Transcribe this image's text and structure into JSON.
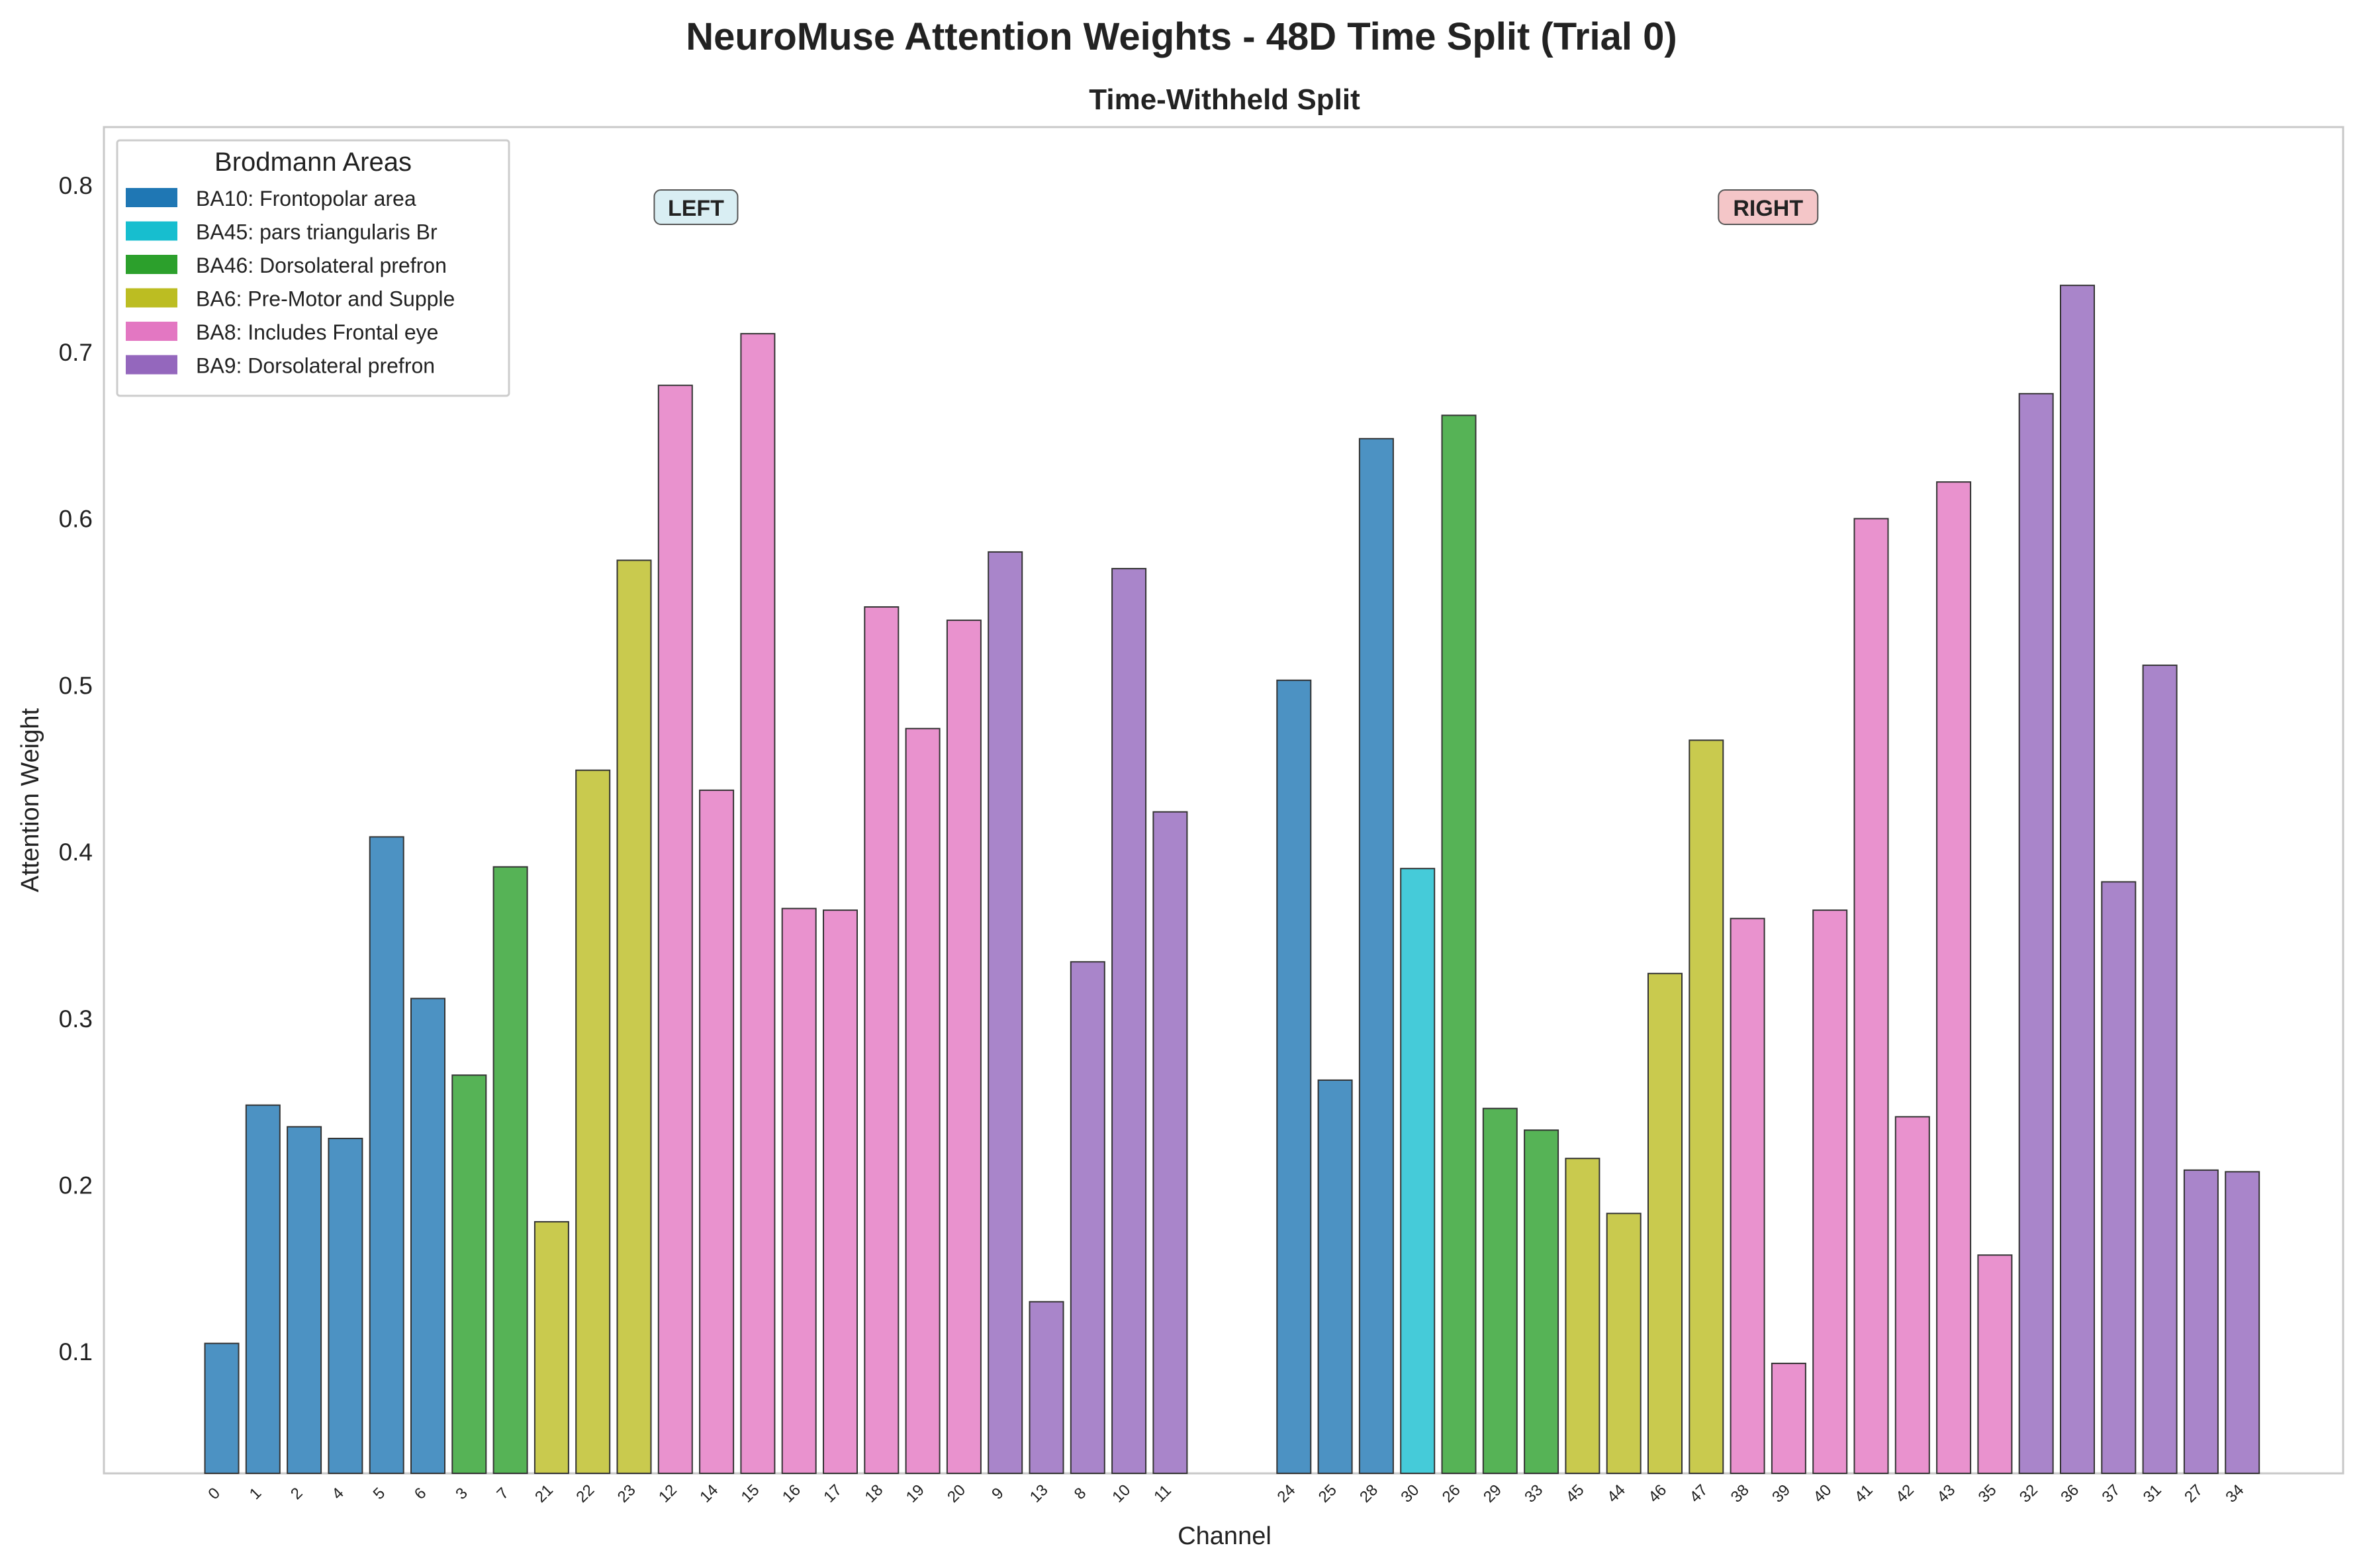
{
  "chart_data": {
    "type": "bar",
    "title": "NeuroMuse Attention Weights - 48D Time Split (Trial 0)",
    "subtitle": "Time-Withheld Split",
    "xlabel": "Channel",
    "ylabel": "Attention Weight",
    "ylim": [
      0.027,
      0.835
    ],
    "yticks": [
      "0.1",
      "0.2",
      "0.3",
      "0.4",
      "0.5",
      "0.6",
      "0.7",
      "0.8"
    ],
    "grid": false,
    "legend_title": "Brodmann Areas",
    "legend_position": "top-left",
    "legend": [
      {
        "key": "BA10",
        "label": "BA10: Frontopolar area",
        "color": "#1f77b4"
      },
      {
        "key": "BA45",
        "label": "BA45: pars triangularis Br",
        "color": "#17becf"
      },
      {
        "key": "BA46",
        "label": "BA46: Dorsolateral prefron",
        "color": "#2ca02c"
      },
      {
        "key": "BA6",
        "label": "BA6: Pre-Motor and Supple",
        "color": "#bcbd22"
      },
      {
        "key": "BA8",
        "label": "BA8: Includes Frontal eye",
        "color": "#e377c2"
      },
      {
        "key": "BA9",
        "label": "BA9: Dorsolateral prefron",
        "color": "#9467bd"
      }
    ],
    "hemisphere_labels": [
      {
        "text": "LEFT",
        "color": "#d9eef3"
      },
      {
        "text": "RIGHT",
        "color": "#f4c6c8"
      }
    ],
    "groups": [
      {
        "hemisphere": "LEFT",
        "bars": [
          {
            "channel": "0",
            "area": "BA10",
            "value": 0.105
          },
          {
            "channel": "1",
            "area": "BA10",
            "value": 0.248
          },
          {
            "channel": "2",
            "area": "BA10",
            "value": 0.235
          },
          {
            "channel": "4",
            "area": "BA10",
            "value": 0.228
          },
          {
            "channel": "5",
            "area": "BA10",
            "value": 0.409
          },
          {
            "channel": "6",
            "area": "BA10",
            "value": 0.312
          },
          {
            "channel": "3",
            "area": "BA46",
            "value": 0.266
          },
          {
            "channel": "7",
            "area": "BA46",
            "value": 0.391
          },
          {
            "channel": "21",
            "area": "BA6",
            "value": 0.178
          },
          {
            "channel": "22",
            "area": "BA6",
            "value": 0.449
          },
          {
            "channel": "23",
            "area": "BA6",
            "value": 0.575
          },
          {
            "channel": "12",
            "area": "BA8",
            "value": 0.68
          },
          {
            "channel": "14",
            "area": "BA8",
            "value": 0.437
          },
          {
            "channel": "15",
            "area": "BA8",
            "value": 0.711
          },
          {
            "channel": "16",
            "area": "BA8",
            "value": 0.366
          },
          {
            "channel": "17",
            "area": "BA8",
            "value": 0.365
          },
          {
            "channel": "18",
            "area": "BA8",
            "value": 0.547
          },
          {
            "channel": "19",
            "area": "BA8",
            "value": 0.474
          },
          {
            "channel": "20",
            "area": "BA8",
            "value": 0.539
          },
          {
            "channel": "9",
            "area": "BA9",
            "value": 0.58
          },
          {
            "channel": "13",
            "area": "BA9",
            "value": 0.13
          },
          {
            "channel": "8",
            "area": "BA9",
            "value": 0.334
          },
          {
            "channel": "10",
            "area": "BA9",
            "value": 0.57
          },
          {
            "channel": "11",
            "area": "BA9",
            "value": 0.424
          }
        ]
      },
      {
        "hemisphere": "RIGHT",
        "bars": [
          {
            "channel": "24",
            "area": "BA10",
            "value": 0.503
          },
          {
            "channel": "25",
            "area": "BA10",
            "value": 0.263
          },
          {
            "channel": "28",
            "area": "BA10",
            "value": 0.648
          },
          {
            "channel": "30",
            "area": "BA45",
            "value": 0.39
          },
          {
            "channel": "26",
            "area": "BA46",
            "value": 0.662
          },
          {
            "channel": "29",
            "area": "BA46",
            "value": 0.246
          },
          {
            "channel": "33",
            "area": "BA46",
            "value": 0.233
          },
          {
            "channel": "45",
            "area": "BA6",
            "value": 0.216
          },
          {
            "channel": "44",
            "area": "BA6",
            "value": 0.183
          },
          {
            "channel": "46",
            "area": "BA6",
            "value": 0.327
          },
          {
            "channel": "47",
            "area": "BA6",
            "value": 0.467
          },
          {
            "channel": "38",
            "area": "BA8",
            "value": 0.36
          },
          {
            "channel": "39",
            "area": "BA8",
            "value": 0.093
          },
          {
            "channel": "40",
            "area": "BA8",
            "value": 0.365
          },
          {
            "channel": "41",
            "area": "BA8",
            "value": 0.6
          },
          {
            "channel": "42",
            "area": "BA8",
            "value": 0.241
          },
          {
            "channel": "43",
            "area": "BA8",
            "value": 0.622
          },
          {
            "channel": "35",
            "area": "BA8",
            "value": 0.158
          },
          {
            "channel": "32",
            "area": "BA9",
            "value": 0.675
          },
          {
            "channel": "36",
            "area": "BA9",
            "value": 0.74
          },
          {
            "channel": "37",
            "area": "BA9",
            "value": 0.382
          },
          {
            "channel": "31",
            "area": "BA9",
            "value": 0.512
          },
          {
            "channel": "27",
            "area": "BA9",
            "value": 0.209
          },
          {
            "channel": "34",
            "area": "BA9",
            "value": 0.208
          }
        ]
      }
    ]
  }
}
